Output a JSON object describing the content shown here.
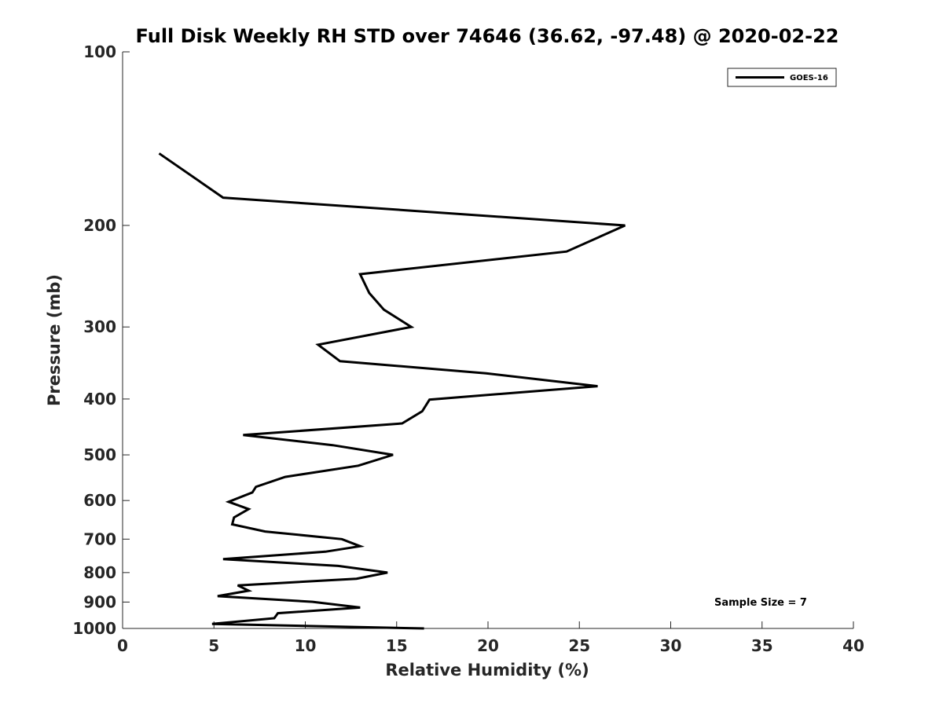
{
  "chart_data": {
    "type": "line",
    "title": "Full Disk Weekly RH STD over 74646 (36.62, -97.48) @ 2020-02-22",
    "xlabel": "Relative Humidity (%)",
    "ylabel": "Pressure (mb)",
    "xlim": [
      0,
      40
    ],
    "ylim": [
      100,
      1000
    ],
    "yscale": "log",
    "y_reversed": true,
    "x_ticks": [
      0,
      5,
      10,
      15,
      20,
      25,
      30,
      35,
      40
    ],
    "y_ticks": [
      100,
      200,
      300,
      400,
      500,
      600,
      700,
      800,
      900,
      1000
    ],
    "grid": false,
    "legend_position": "top-right",
    "annotation": "Sample Size = 7",
    "series": [
      {
        "name": "GOES-16",
        "color": "#000000",
        "points": [
          [
            2.0,
            150
          ],
          [
            5.5,
            179
          ],
          [
            27.5,
            200
          ],
          [
            24.3,
            222
          ],
          [
            13.0,
            243
          ],
          [
            13.5,
            262
          ],
          [
            14.3,
            280
          ],
          [
            15.8,
            300
          ],
          [
            10.7,
            322
          ],
          [
            11.9,
            344
          ],
          [
            19.9,
            361
          ],
          [
            26.0,
            380
          ],
          [
            16.8,
            401
          ],
          [
            16.4,
            420
          ],
          [
            15.3,
            441
          ],
          [
            6.6,
            462
          ],
          [
            11.5,
            481
          ],
          [
            14.8,
            500
          ],
          [
            12.9,
            522
          ],
          [
            8.9,
            546
          ],
          [
            7.3,
            568
          ],
          [
            7.1,
            581
          ],
          [
            5.8,
            603
          ],
          [
            6.9,
            621
          ],
          [
            6.1,
            642
          ],
          [
            6.0,
            660
          ],
          [
            7.8,
            679
          ],
          [
            12.0,
            700
          ],
          [
            13.0,
            720
          ],
          [
            11.1,
            736
          ],
          [
            5.5,
            758
          ],
          [
            11.8,
            779
          ],
          [
            14.5,
            800
          ],
          [
            12.8,
            820
          ],
          [
            6.3,
            842
          ],
          [
            6.9,
            860
          ],
          [
            5.2,
            879
          ],
          [
            10.4,
            899
          ],
          [
            13.0,
            920
          ],
          [
            8.5,
            941
          ],
          [
            8.3,
            960
          ],
          [
            4.9,
            982
          ],
          [
            16.5,
            1000
          ]
        ]
      }
    ]
  }
}
